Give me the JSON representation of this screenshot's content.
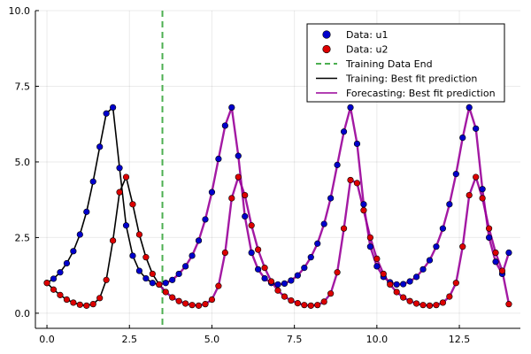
{
  "chart_data": {
    "type": "line",
    "title": "",
    "xlabel": "",
    "ylabel": "",
    "xlim": [
      -0.35,
      14.35
    ],
    "ylim": [
      -0.5,
      10.0
    ],
    "grid": true,
    "legend_position": "top-right",
    "x_ticks": [
      {
        "value": 0.0,
        "label": "0.0"
      },
      {
        "value": 2.5,
        "label": "2.5"
      },
      {
        "value": 5.0,
        "label": "5.0"
      },
      {
        "value": 7.5,
        "label": "7.5"
      },
      {
        "value": 10.0,
        "label": "10.0"
      },
      {
        "value": 12.5,
        "label": "12.5"
      }
    ],
    "y_ticks": [
      {
        "value": 0.0,
        "label": "0.0"
      },
      {
        "value": 2.5,
        "label": "2.5"
      },
      {
        "value": 5.0,
        "label": "5.0"
      },
      {
        "value": 7.5,
        "label": "7.5"
      },
      {
        "value": 10.0,
        "label": "10.0"
      }
    ],
    "training_end_x": 3.5,
    "series": [
      {
        "name": "Data: u1",
        "kind": "scatter",
        "color": "#0000cc",
        "x": [
          0.0,
          0.2,
          0.4,
          0.6,
          0.8,
          1.0,
          1.2,
          1.4,
          1.6,
          1.8,
          2.0,
          2.2,
          2.4,
          2.6,
          2.8,
          3.0,
          3.2,
          3.4,
          3.6,
          3.8,
          4.0,
          4.2,
          4.4,
          4.6,
          4.8,
          5.0,
          5.2,
          5.4,
          5.6,
          5.8,
          6.0,
          6.2,
          6.4,
          6.6,
          6.8,
          7.0,
          7.2,
          7.4,
          7.6,
          7.8,
          8.0,
          8.2,
          8.4,
          8.6,
          8.8,
          9.0,
          9.2,
          9.4,
          9.6,
          9.8,
          10.0,
          10.2,
          10.4,
          10.6,
          10.8,
          11.0,
          11.2,
          11.4,
          11.6,
          11.8,
          12.0,
          12.2,
          12.4,
          12.6,
          12.8,
          13.0,
          13.2,
          13.4,
          13.6,
          13.8,
          14.0
        ],
        "y": [
          1.0,
          1.14,
          1.35,
          1.65,
          2.05,
          2.6,
          3.35,
          4.35,
          5.5,
          6.6,
          6.8,
          4.8,
          2.9,
          1.9,
          1.4,
          1.15,
          1.0,
          0.95,
          1.0,
          1.1,
          1.3,
          1.55,
          1.9,
          2.4,
          3.1,
          4.0,
          5.1,
          6.2,
          6.8,
          5.2,
          3.2,
          2.0,
          1.45,
          1.15,
          1.0,
          0.95,
          0.98,
          1.08,
          1.25,
          1.5,
          1.85,
          2.3,
          2.95,
          3.8,
          4.9,
          6.0,
          6.8,
          5.6,
          3.6,
          2.2,
          1.55,
          1.2,
          1.02,
          0.95,
          0.96,
          1.05,
          1.2,
          1.45,
          1.75,
          2.2,
          2.8,
          3.6,
          4.6,
          5.8,
          6.8,
          6.1,
          4.1,
          2.5,
          1.7,
          1.3,
          2.0
        ]
      },
      {
        "name": "Data: u2",
        "kind": "scatter",
        "color": "#dd0000",
        "x": [
          0.0,
          0.2,
          0.4,
          0.6,
          0.8,
          1.0,
          1.2,
          1.4,
          1.6,
          1.8,
          2.0,
          2.2,
          2.4,
          2.6,
          2.8,
          3.0,
          3.2,
          3.4,
          3.6,
          3.8,
          4.0,
          4.2,
          4.4,
          4.6,
          4.8,
          5.0,
          5.2,
          5.4,
          5.6,
          5.8,
          6.0,
          6.2,
          6.4,
          6.6,
          6.8,
          7.0,
          7.2,
          7.4,
          7.6,
          7.8,
          8.0,
          8.2,
          8.4,
          8.6,
          8.8,
          9.0,
          9.2,
          9.4,
          9.6,
          9.8,
          10.0,
          10.2,
          10.4,
          10.6,
          10.8,
          11.0,
          11.2,
          11.4,
          11.6,
          11.8,
          12.0,
          12.2,
          12.4,
          12.6,
          12.8,
          13.0,
          13.2,
          13.4,
          13.6,
          13.8,
          14.0
        ],
        "y": [
          1.0,
          0.78,
          0.6,
          0.45,
          0.35,
          0.28,
          0.25,
          0.3,
          0.5,
          1.1,
          2.4,
          4.0,
          4.5,
          3.6,
          2.6,
          1.85,
          1.3,
          0.95,
          0.7,
          0.52,
          0.4,
          0.32,
          0.27,
          0.25,
          0.3,
          0.45,
          0.9,
          2.0,
          3.8,
          4.5,
          3.9,
          2.9,
          2.1,
          1.5,
          1.05,
          0.75,
          0.55,
          0.42,
          0.33,
          0.27,
          0.25,
          0.27,
          0.38,
          0.65,
          1.35,
          2.8,
          4.4,
          4.3,
          3.4,
          2.5,
          1.8,
          1.3,
          0.95,
          0.7,
          0.52,
          0.4,
          0.32,
          0.27,
          0.25,
          0.27,
          0.35,
          0.55,
          1.0,
          2.2,
          3.9,
          4.5,
          3.8,
          2.8,
          2.0,
          1.4,
          0.3
        ]
      },
      {
        "name": "Training Data End",
        "kind": "vline",
        "color": "#4caf50"
      },
      {
        "name": "Training: Best fit prediction",
        "kind": "line",
        "color": "#000000"
      },
      {
        "name": "Forecasting: Best fit prediction",
        "kind": "line",
        "color": "#990099"
      }
    ]
  }
}
